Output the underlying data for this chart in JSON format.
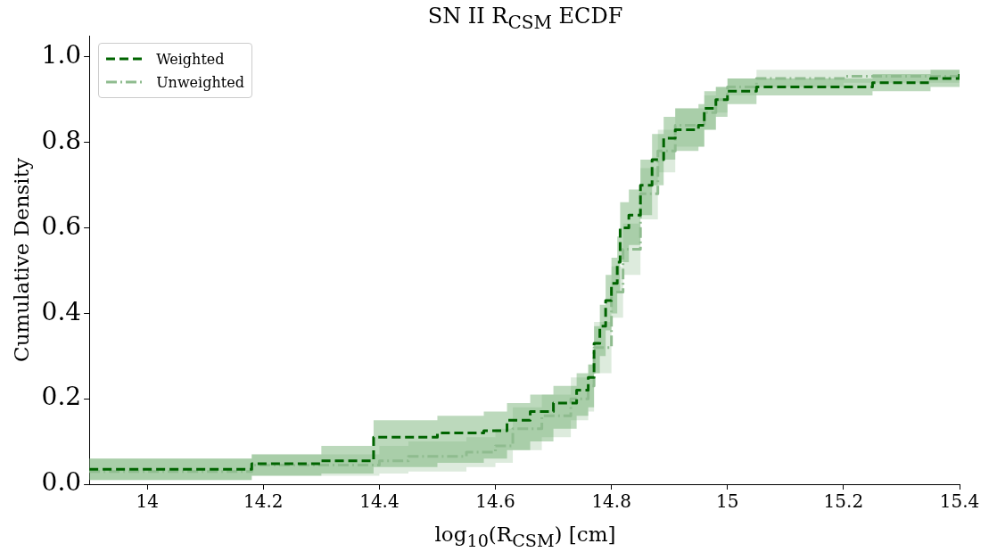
{
  "chart_data": {
    "type": "step",
    "title": "SN II R$_{CSM}$ ECDF",
    "xlabel": "log$_{10}$(R$_{CSM}$) [cm]",
    "ylabel": "Cumulative Density",
    "xlim": [
      13.9,
      15.4
    ],
    "xticks": [
      14,
      14.2,
      14.4,
      14.6,
      14.8,
      15,
      15.2,
      15.4
    ],
    "ylim": [
      0,
      1.05
    ],
    "yticks": [
      {
        "value": 0,
        "label": "0.0"
      },
      {
        "value": 0.2,
        "label": "0.2"
      },
      {
        "value": 0.4,
        "label": "0.4"
      },
      {
        "value": 0.6,
        "label": "0.6"
      },
      {
        "value": 0.8,
        "label": "0.8"
      },
      {
        "value": 1,
        "label": "1.0"
      }
    ],
    "grid": false,
    "legend": "top left",
    "series": [
      {
        "name": "Weighted",
        "color": "#006400",
        "line_style": "dashed",
        "x": [
          13.9,
          14.18,
          14.3,
          14.39,
          14.5,
          14.58,
          14.62,
          14.66,
          14.7,
          14.74,
          14.76,
          14.77,
          14.78,
          14.79,
          14.8,
          14.81,
          14.815,
          14.83,
          14.85,
          14.87,
          14.89,
          14.91,
          14.95,
          14.96,
          14.98,
          15.0,
          15.05,
          15.25,
          15.35,
          15.4
        ],
        "values": [
          0.035,
          0.048,
          0.055,
          0.11,
          0.12,
          0.125,
          0.15,
          0.17,
          0.19,
          0.22,
          0.25,
          0.33,
          0.37,
          0.43,
          0.47,
          0.52,
          0.6,
          0.63,
          0.7,
          0.76,
          0.81,
          0.83,
          0.84,
          0.88,
          0.9,
          0.92,
          0.93,
          0.94,
          0.95,
          0.96
        ],
        "lower": [
          0.01,
          0.02,
          0.025,
          0.04,
          0.05,
          0.06,
          0.08,
          0.1,
          0.13,
          0.16,
          0.18,
          0.26,
          0.3,
          0.36,
          0.4,
          0.45,
          0.52,
          0.56,
          0.63,
          0.7,
          0.76,
          0.78,
          0.79,
          0.83,
          0.86,
          0.89,
          0.91,
          0.92,
          0.93,
          0.94
        ],
        "upper": [
          0.06,
          0.07,
          0.09,
          0.15,
          0.16,
          0.17,
          0.19,
          0.21,
          0.23,
          0.26,
          0.28,
          0.37,
          0.42,
          0.49,
          0.53,
          0.58,
          0.66,
          0.69,
          0.76,
          0.82,
          0.86,
          0.88,
          0.89,
          0.92,
          0.93,
          0.95,
          0.95,
          0.96,
          0.97,
          0.975
        ]
      },
      {
        "name": "Unweighted",
        "color": "#8fbc8f",
        "line_style": "dashdot",
        "x": [
          13.9,
          14.18,
          14.4,
          14.45,
          14.55,
          14.6,
          14.63,
          14.68,
          14.73,
          14.76,
          14.77,
          14.8,
          14.82,
          14.85,
          14.88,
          14.91,
          14.96,
          14.98,
          15.0,
          15.05,
          15.2,
          15.4
        ],
        "values": [
          0.03,
          0.045,
          0.055,
          0.065,
          0.075,
          0.09,
          0.13,
          0.16,
          0.2,
          0.23,
          0.32,
          0.45,
          0.55,
          0.68,
          0.78,
          0.84,
          0.87,
          0.9,
          0.93,
          0.95,
          0.955,
          0.965
        ],
        "lower": [
          0.01,
          0.02,
          0.025,
          0.03,
          0.04,
          0.05,
          0.08,
          0.11,
          0.15,
          0.17,
          0.26,
          0.39,
          0.49,
          0.62,
          0.73,
          0.79,
          0.83,
          0.87,
          0.91,
          0.93,
          0.94,
          0.95
        ],
        "upper": [
          0.06,
          0.07,
          0.09,
          0.1,
          0.11,
          0.13,
          0.18,
          0.21,
          0.25,
          0.28,
          0.38,
          0.51,
          0.61,
          0.74,
          0.83,
          0.88,
          0.91,
          0.93,
          0.95,
          0.97,
          0.97,
          0.98
        ]
      }
    ]
  }
}
